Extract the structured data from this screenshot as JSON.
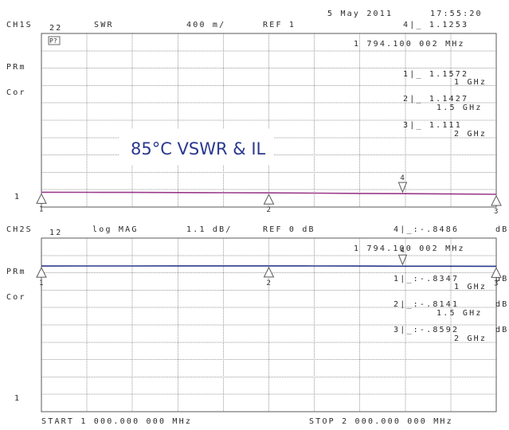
{
  "header": {
    "date": "5 May 2011",
    "time": "17:55:20"
  },
  "channel1": {
    "label": "CH1S",
    "param": "22",
    "format": "SWR",
    "scale": "400 m/",
    "ref": "REF 1",
    "stimulus_box": "P?",
    "marker_stimulus": "1 794.100 002 MHz",
    "side_labels": [
      "PRm",
      "Cor"
    ],
    "ref_marker": "1",
    "active_marker": {
      "id": "4",
      "text": "4|_   1.1253"
    },
    "markers": [
      {
        "id": "1",
        "line1": "1|_   1.1572",
        "line2": "1 GHz"
      },
      {
        "id": "2",
        "line1": "2|_   1.1427",
        "line2": "1.5 GHz"
      },
      {
        "id": "3",
        "line1": "3|_   1.111",
        "line2": "2 GHz"
      }
    ],
    "color": "#9a3a8a"
  },
  "channel2": {
    "label": "CH2S",
    "param": "12",
    "format": "log MAG",
    "scale": "1.1 dB/",
    "ref": "REF 0 dB",
    "marker_stimulus": "1 794.100 002 MHz",
    "side_labels": [
      "PRm",
      "Cor"
    ],
    "ref_marker": "1",
    "active_marker": {
      "id": "4",
      "text": "4|_:-.8486",
      "unit": "dB"
    },
    "markers": [
      {
        "id": "1",
        "line1": "1|_:-.8347",
        "line2": "1 GHz",
        "unit": "dB"
      },
      {
        "id": "2",
        "line1": "2|_:-.8141",
        "line2": "1.5 GHz",
        "unit": "dB"
      },
      {
        "id": "3",
        "line1": "3|_:-.8592",
        "line2": "2 GHz",
        "unit": "dB"
      }
    ],
    "color": "#2b3a8a"
  },
  "footer": {
    "start": "START 1 000.000 000 MHz",
    "stop": "STOP 2 000.000 000 MHz"
  },
  "overlay_title": "85°C VSWR & IL",
  "chart_data": [
    {
      "type": "line",
      "title": "",
      "xlabel": "",
      "ylabel": "",
      "x_unit": "MHz",
      "xlim": [
        1000,
        2000
      ],
      "ylim": [
        1,
        5
      ],
      "series": [
        {
          "x": [
            1000,
            1100,
            1200,
            1300,
            1400,
            1500,
            1600,
            1700,
            1794.1,
            1900,
            2000
          ],
          "y": [
            1.157,
            1.156,
            1.155,
            1.15,
            1.146,
            1.143,
            1.138,
            1.131,
            1.125,
            1.118,
            1.111
          ]
        }
      ],
      "marker_points": [
        {
          "id": "1",
          "x": 1000,
          "y": 1.1572
        },
        {
          "id": "2",
          "x": 1500,
          "y": 1.1427
        },
        {
          "id": "3",
          "x": 2000,
          "y": 1.111
        },
        {
          "id": "4",
          "x": 1794.1,
          "y": 1.1253
        }
      ],
      "grid": true
    },
    {
      "type": "line",
      "title": "",
      "xlabel": "",
      "ylabel": "",
      "x_unit": "MHz",
      "y_unit": "dB",
      "xlim": [
        1000,
        2000
      ],
      "ylim": [
        -11,
        0
      ],
      "series": [
        {
          "x": [
            1000,
            1100,
            1200,
            1300,
            1400,
            1500,
            1600,
            1700,
            1794.1,
            1900,
            2000
          ],
          "y": [
            -0.835,
            -0.829,
            -0.824,
            -0.818,
            -0.816,
            -0.814,
            -0.822,
            -0.835,
            -0.849,
            -0.855,
            -0.859
          ]
        }
      ],
      "marker_points": [
        {
          "id": "1",
          "x": 1000,
          "y": -0.8347
        },
        {
          "id": "2",
          "x": 1500,
          "y": -0.8141
        },
        {
          "id": "3",
          "x": 2000,
          "y": -0.8592
        },
        {
          "id": "4",
          "x": 1794.1,
          "y": -0.8486
        }
      ],
      "grid": true
    }
  ]
}
